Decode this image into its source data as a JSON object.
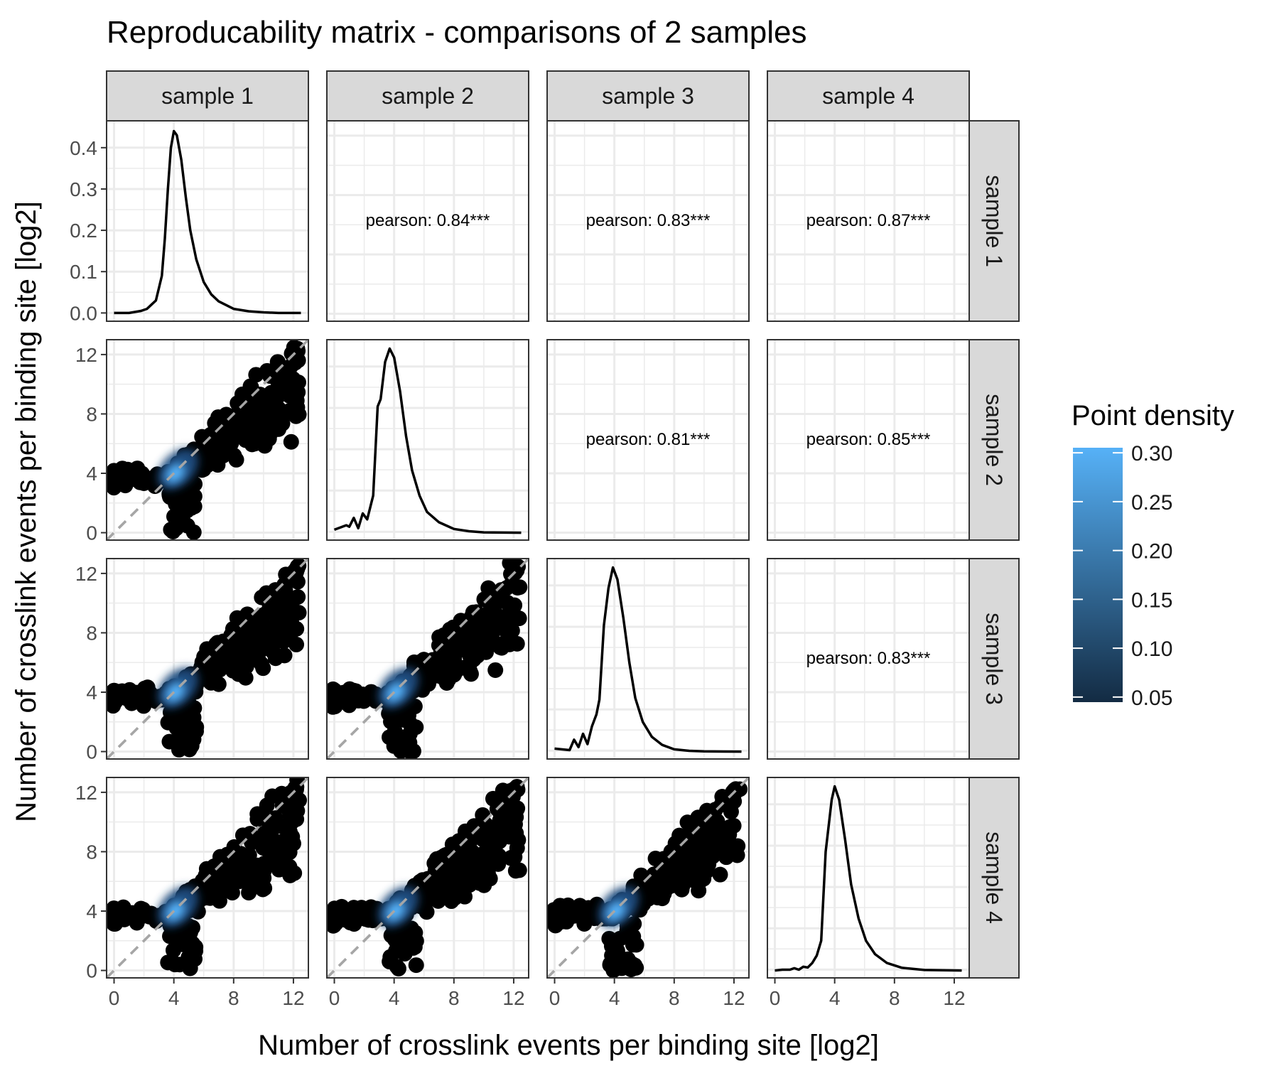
{
  "chart_data": {
    "type": "scatter",
    "title": "Reproducability matrix - comparisons of 2 samples",
    "xlabel": "Number of crosslink events per binding site [log2]",
    "ylabel": "Number of crosslink events per binding site [log2]",
    "samples": [
      "sample 1",
      "sample 2",
      "sample 3",
      "sample 4"
    ],
    "xlim": [
      -0.5,
      13
    ],
    "xticks": [
      0,
      4,
      8,
      12
    ],
    "scatter_ylim": [
      -0.5,
      13
    ],
    "scatter_yticks": [
      0,
      4,
      8,
      12
    ],
    "density_ylim": [
      -0.02,
      0.465
    ],
    "density_yticks": [
      0.0,
      0.1,
      0.2,
      0.3,
      0.4
    ],
    "density_ytick_labels": [
      "0.0",
      "0.1",
      "0.2",
      "0.3",
      "0.4"
    ],
    "diagonal_density": [
      {
        "sample": "sample 1",
        "x": [
          0,
          1,
          1.8,
          2.2,
          2.5,
          2.8,
          3.0,
          3.2,
          3.4,
          3.6,
          3.8,
          4.0,
          4.2,
          4.5,
          4.8,
          5.1,
          5.5,
          6.0,
          6.5,
          7.0,
          8.0,
          9.0,
          10.0,
          11.0,
          12.5
        ],
        "y": [
          0.0,
          0.0,
          0.005,
          0.01,
          0.02,
          0.03,
          0.06,
          0.09,
          0.18,
          0.3,
          0.4,
          0.44,
          0.43,
          0.37,
          0.28,
          0.2,
          0.13,
          0.075,
          0.045,
          0.028,
          0.01,
          0.004,
          0.0015,
          0.0,
          0.0
        ]
      },
      {
        "sample": "sample 2",
        "x": [
          0,
          0.8,
          1.0,
          1.3,
          1.6,
          1.9,
          2.2,
          2.6,
          2.9,
          3.1,
          3.4,
          3.7,
          4.0,
          4.4,
          4.8,
          5.2,
          5.7,
          6.2,
          7.0,
          8.0,
          9.0,
          10.0,
          12.5
        ],
        "y": [
          0.2,
          0.5,
          0.4,
          1.0,
          0.3,
          1.3,
          0.9,
          2.5,
          8.5,
          9.0,
          11.5,
          12.4,
          11.8,
          9.5,
          6.5,
          4.2,
          2.5,
          1.4,
          0.7,
          0.25,
          0.1,
          0.02,
          0.0
        ]
      },
      {
        "sample": "sample 3",
        "x": [
          0,
          1.0,
          1.3,
          1.6,
          1.9,
          2.2,
          2.5,
          2.8,
          3.0,
          3.3,
          3.6,
          3.9,
          4.2,
          4.6,
          5.0,
          5.4,
          5.9,
          6.5,
          7.2,
          8.0,
          9.0,
          10.0,
          12.5
        ],
        "y": [
          0.2,
          0.1,
          0.8,
          0.3,
          1.2,
          0.5,
          1.7,
          2.5,
          3.5,
          8.5,
          11.0,
          12.4,
          11.6,
          9.0,
          6.0,
          3.6,
          2.0,
          1.0,
          0.45,
          0.15,
          0.05,
          0.01,
          0.0
        ]
      },
      {
        "sample": "sample 4",
        "x": [
          0,
          0.5,
          1.0,
          1.3,
          1.6,
          1.9,
          2.2,
          2.5,
          2.8,
          3.1,
          3.4,
          3.8,
          4.0,
          4.3,
          4.7,
          5.1,
          5.6,
          6.1,
          6.7,
          7.5,
          8.5,
          10.0,
          12.5
        ],
        "y": [
          0.0,
          0.05,
          0.05,
          0.15,
          0.05,
          0.25,
          0.2,
          0.5,
          1.0,
          2.0,
          8.0,
          11.5,
          12.4,
          11.5,
          8.8,
          5.8,
          3.5,
          2.0,
          1.1,
          0.5,
          0.18,
          0.03,
          0.0
        ]
      }
    ],
    "pairs": [
      {
        "row": "sample 2",
        "col": "sample 1"
      },
      {
        "row": "sample 3",
        "col": "sample 1"
      },
      {
        "row": "sample 4",
        "col": "sample 1"
      },
      {
        "row": "sample 3",
        "col": "sample 2"
      },
      {
        "row": "sample 4",
        "col": "sample 2"
      },
      {
        "row": "sample 4",
        "col": "sample 3"
      }
    ],
    "reference_line": {
      "slope": 1,
      "intercept": 0,
      "style": "dashed",
      "color": "#a6a6a6"
    },
    "correlations": [
      {
        "row": "sample 1",
        "col": "sample 2",
        "label": "pearson: 0.84***"
      },
      {
        "row": "sample 1",
        "col": "sample 3",
        "label": "pearson: 0.83***"
      },
      {
        "row": "sample 1",
        "col": "sample 4",
        "label": "pearson: 0.87***"
      },
      {
        "row": "sample 2",
        "col": "sample 3",
        "label": "pearson: 0.81***"
      },
      {
        "row": "sample 2",
        "col": "sample 4",
        "label": "pearson: 0.85***"
      },
      {
        "row": "sample 3",
        "col": "sample 4",
        "label": "pearson: 0.83***"
      }
    ],
    "legend": {
      "title": "Point density",
      "position": "right",
      "range": [
        0.05,
        0.3
      ],
      "ticks": [
        0.05,
        0.1,
        0.15,
        0.2,
        0.25,
        0.3
      ],
      "tick_labels": [
        "0.05",
        "0.10",
        "0.15",
        "0.20",
        "0.25",
        "0.30"
      ],
      "color_low": "#132B43",
      "color_high": "#56B1F7"
    },
    "grid": true,
    "colors": {
      "strip_fill": "#d9d9d9",
      "grid": "#ebebeb",
      "panel_border": "#333333",
      "points": "#000000",
      "density_line": "#000000"
    }
  }
}
